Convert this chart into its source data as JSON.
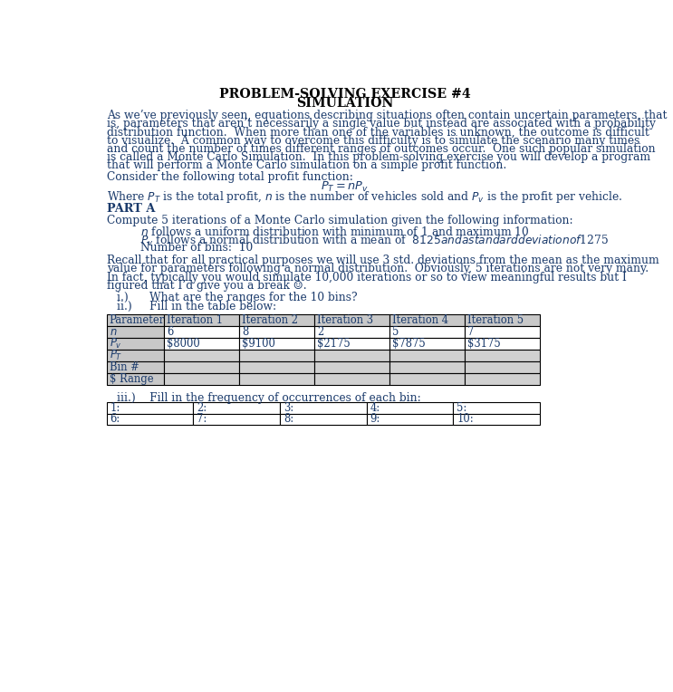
{
  "title_line1": "PROBLEM-SOLVING EXERCISE #4",
  "title_line2": "SIMULATION",
  "body_text": "As we’ve previously seen, equations describing situations often contain uncertain parameters, that\nis, parameters that aren’t necessarily a single value but instead are associated with a probability\ndistribution function.  When more than one of the variables is unknown, the outcome is difficult\nto visualize.  A common way to overcome this difficulty is to simulate the scenario many times\nand count the number of times different ranges of outcomes occur.  One such popular simulation\nis called a Monte Carlo Simulation.  In this problem-solving exercise you will develop a program\nthat will perform a Monte Carlo simulation on a simple profit function.",
  "consider_text": "Consider the following total profit function:",
  "where_text_parts": [
    "Where ",
    "P",
    "T",
    " is the total profit, ",
    "n",
    " is the number of vehicles sold and ",
    "P",
    "v",
    " is the profit per vehicle."
  ],
  "part_a": "PART A",
  "compute_text": "Compute 5 iterations of a Monte Carlo simulation given the following information:",
  "bullet1_plain": "n",
  "bullet1_rest": " follows a uniform distribution with minimum of 1 and maximum 10",
  "bullet2_plain": "P",
  "bullet2_sub": "v",
  "bullet2_rest": " follows a normal distribution with a mean of  $8125 and a standard deviation of $1275",
  "bullet3": "Number of bins:  10",
  "recall_text": "Recall that for all practical purposes we will use 3 std. deviations from the mean as the maximum\nvalue for parameters following a normal distribution.  Obviously, 5 iterations are not very many.\nIn fact, typically you would simulate 10,000 iterations or so to view meaningful results but I\nfigured that I’d give you a break ☺.",
  "qi": "i.)      What are the ranges for the 10 bins?",
  "qii": "ii.)     Fill in the table below:",
  "table_headers": [
    "Parameter",
    "Iteration 1",
    "Iteration 2",
    "Iteration 3",
    "Iteration 4",
    "Iteration 5"
  ],
  "table_row1_vals": [
    "6",
    "8",
    "2",
    "5",
    "7"
  ],
  "table_row2_vals": [
    "$8000",
    "$9100",
    "$2175",
    "$7875",
    "$3175"
  ],
  "table_row3_vals": [
    "",
    "",
    "",
    "",
    ""
  ],
  "table_row4_vals": [
    "",
    "",
    "",
    "",
    ""
  ],
  "table_row5_vals": [
    "",
    "",
    "",
    "",
    ""
  ],
  "qiii": "iii.)    Fill in the frequency of occurrences of each bin:",
  "freq_row1": [
    "1:",
    "2:",
    "3:",
    "4:",
    "5:"
  ],
  "freq_row2": [
    "6:",
    "7:",
    "8:",
    "9:",
    "10:"
  ],
  "text_color": "#1a3a6b",
  "title_color": "#000000",
  "bg_color": "#ffffff",
  "table_header_bg": "#c8c8c8",
  "table_empty_bg": "#d0d0d0",
  "table_data_bg": "#ffffff"
}
